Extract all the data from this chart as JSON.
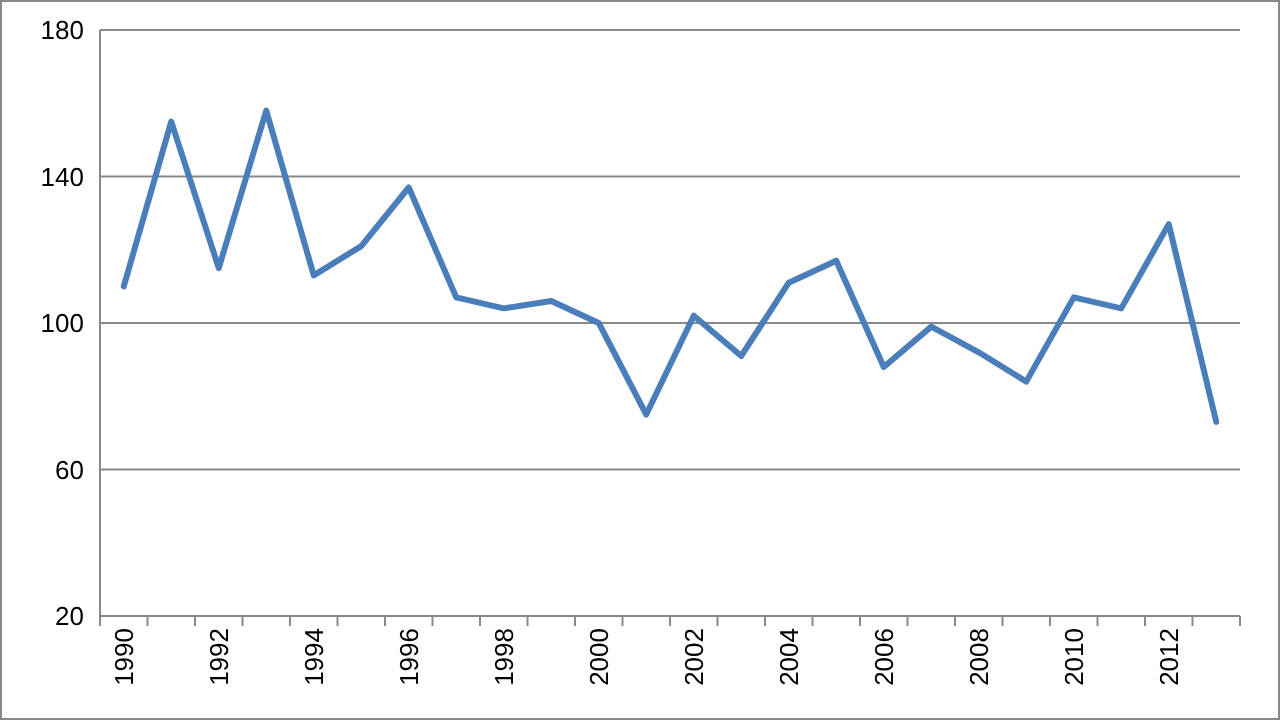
{
  "chart_data": {
    "type": "line",
    "categories": [
      "1990",
      null,
      "1992",
      null,
      "1994",
      null,
      "1996",
      null,
      "1998",
      null,
      "2000",
      null,
      "2002",
      null,
      "2004",
      null,
      "2006",
      null,
      "2008",
      null,
      "2010",
      null,
      "2012",
      null
    ],
    "series": [
      {
        "color": "#4a7ebb",
        "values": [
          110,
          155,
          115,
          158,
          113,
          121,
          137,
          107,
          104,
          106,
          100,
          75,
          102,
          91,
          111,
          117,
          88,
          99,
          92,
          84,
          107,
          104,
          127,
          73
        ]
      }
    ],
    "ylim": [
      20,
      180
    ],
    "yticks": [
      20,
      60,
      100,
      140,
      180
    ],
    "grid": "y",
    "marker": "none",
    "line_style": "solid"
  }
}
